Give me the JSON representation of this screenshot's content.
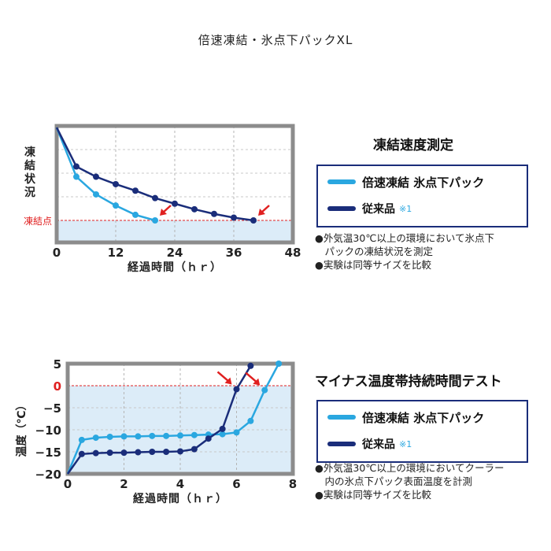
{
  "page_title": "倍速凍結・氷点下パックXL",
  "colors": {
    "product": "#2aa7e0",
    "conventional": "#1a2d7a",
    "accent": "#e02020",
    "fill": "#dcecf8",
    "frame": "#8c8c8c"
  },
  "chart1": {
    "title": "凍結速度測定",
    "legend": [
      {
        "label": "倍速凍結  氷点下パック",
        "note": ""
      },
      {
        "label": "従来品",
        "note": "※1"
      }
    ],
    "notes": [
      "●外気温30℃以上の環境において氷点下",
      "　パックの凍結状況を測定",
      "●実験は同等サイズを比較"
    ]
  },
  "chart2": {
    "title": "マイナス温度帯持続時間テスト",
    "legend": [
      {
        "label": "倍速凍結  氷点下パック",
        "note": ""
      },
      {
        "label": "従来品",
        "note": "※1"
      }
    ],
    "notes": [
      "●外気温30℃以上の環境においてクーラー",
      "　内の氷点下パック表面温度を計測",
      "●実験は同等サイズを比較"
    ]
  },
  "chart_data": [
    {
      "type": "line",
      "title": "凍結速度測定",
      "xlabel": "経過時間（ｈｒ）",
      "ylabel": "凍結状況",
      "reference_label": "凍結点",
      "x_ticks": [
        "0",
        "12",
        "24",
        "36",
        "48"
      ],
      "xlim": [
        0,
        48
      ],
      "ylim": [
        0,
        1
      ],
      "reference_y": 0,
      "series": [
        {
          "name": "倍速凍結  氷点下パック",
          "x": [
            0,
            4,
            8,
            12,
            16,
            20
          ],
          "y": [
            1.0,
            0.47,
            0.28,
            0.16,
            0.06,
            0.0
          ]
        },
        {
          "name": "従来品",
          "x": [
            0,
            4,
            8,
            12,
            16,
            20,
            24,
            28,
            32,
            36,
            40
          ],
          "y": [
            1.0,
            0.58,
            0.47,
            0.39,
            0.32,
            0.24,
            0.18,
            0.12,
            0.07,
            0.03,
            0.0
          ]
        }
      ],
      "markers": [
        {
          "x": 20,
          "y": 0
        },
        {
          "x": 40,
          "y": 0
        }
      ]
    },
    {
      "type": "line",
      "title": "マイナス温度帯持続時間テスト",
      "xlabel": "経過時間（ｈｒ）",
      "ylabel": "温度（℃）",
      "x_ticks": [
        "0",
        "2",
        "4",
        "6",
        "8"
      ],
      "y_ticks": [
        "5",
        "0",
        "−5",
        "−10",
        "−15",
        "−20"
      ],
      "xlim": [
        0,
        8
      ],
      "ylim": [
        -20,
        5
      ],
      "reference_y": 0,
      "series": [
        {
          "name": "倍速凍結  氷点下パック",
          "x": [
            0,
            0.5,
            1,
            1.5,
            2,
            2.5,
            3,
            3.5,
            4,
            4.5,
            5,
            5.5,
            6,
            6.5,
            7,
            7.5
          ],
          "y": [
            -20,
            -12.3,
            -11.8,
            -11.6,
            -11.5,
            -11.5,
            -11.4,
            -11.4,
            -11.3,
            -11.2,
            -11.1,
            -11.0,
            -10.6,
            -8.0,
            -1.0,
            5.0
          ]
        },
        {
          "name": "従来品",
          "x": [
            0,
            0.5,
            1,
            1.5,
            2,
            2.5,
            3,
            3.5,
            4,
            4.5,
            5,
            5.5,
            6,
            6.5
          ],
          "y": [
            -20,
            -15.5,
            -15.3,
            -15.2,
            -15.2,
            -15.1,
            -15.0,
            -15.0,
            -14.9,
            -14.4,
            -12.0,
            -9.8,
            -0.8,
            4.5
          ]
        }
      ],
      "markers": [
        {
          "x": 6,
          "y": -0.8
        },
        {
          "x": 7,
          "y": -1.0
        }
      ]
    }
  ]
}
